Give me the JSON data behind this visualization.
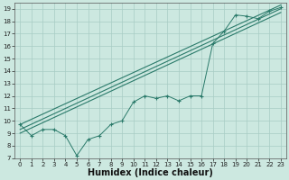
{
  "xlabel": "Humidex (Indice chaleur)",
  "xlim": [
    -0.5,
    23.5
  ],
  "ylim": [
    7,
    19.5
  ],
  "xticks": [
    0,
    1,
    2,
    3,
    4,
    5,
    6,
    7,
    8,
    9,
    10,
    11,
    12,
    13,
    14,
    15,
    16,
    17,
    18,
    19,
    20,
    21,
    22,
    23
  ],
  "yticks": [
    7,
    8,
    9,
    10,
    11,
    12,
    13,
    14,
    15,
    16,
    17,
    18,
    19
  ],
  "bg_color": "#cce8e0",
  "grid_color": "#a8ccC4",
  "line_color": "#2a7a6a",
  "zigzag_x": [
    0,
    1,
    2,
    3,
    4,
    5,
    6,
    7,
    8,
    9,
    10,
    11,
    12,
    13,
    14,
    15,
    16,
    17,
    18,
    19,
    20,
    21,
    22,
    23
  ],
  "zigzag_y": [
    9.7,
    8.8,
    9.3,
    9.3,
    8.8,
    7.2,
    8.5,
    8.8,
    9.7,
    10.0,
    11.5,
    12.0,
    11.8,
    12.0,
    11.6,
    12.0,
    12.0,
    16.2,
    17.2,
    18.5,
    18.4,
    18.2,
    18.8,
    19.1
  ],
  "line1_x": [
    0,
    23
  ],
  "line1_y": [
    9.3,
    19.0
  ],
  "line2_x": [
    0,
    23
  ],
  "line2_y": [
    9.0,
    18.7
  ],
  "line3_x": [
    0,
    23
  ],
  "line3_y": [
    9.7,
    19.3
  ],
  "fontsize_tick": 5,
  "fontsize_label": 7
}
